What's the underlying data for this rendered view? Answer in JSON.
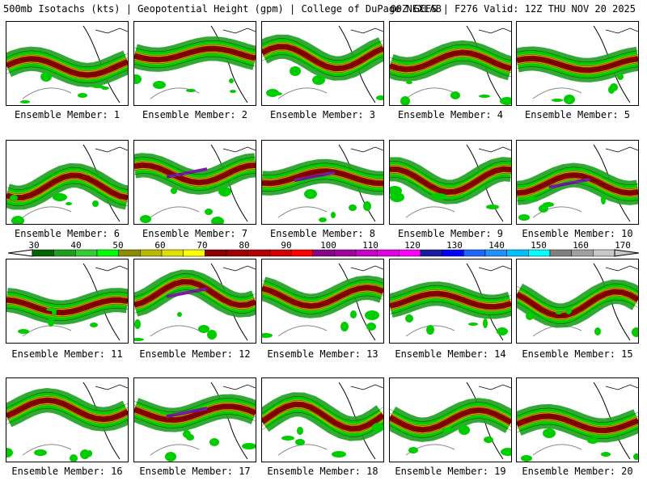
{
  "header": {
    "title": "500mb Isotachs (kts) | Geopotential Height (gpm) | College of DuPage NEXLAB",
    "run_info": "00Z GEFS | F276 Valid: 12Z THU NOV 20 2025"
  },
  "member_label_prefix": "Ensemble Member:",
  "members": [
    {
      "label": "Ensemble Member: 1"
    },
    {
      "label": "Ensemble Member: 2"
    },
    {
      "label": "Ensemble Member: 3"
    },
    {
      "label": "Ensemble Member: 4"
    },
    {
      "label": "Ensemble Member: 5"
    },
    {
      "label": "Ensemble Member: 6"
    },
    {
      "label": "Ensemble Member: 7"
    },
    {
      "label": "Ensemble Member: 8"
    },
    {
      "label": "Ensemble Member: 9"
    },
    {
      "label": "Ensemble Member: 10"
    },
    {
      "label": "Ensemble Member: 11"
    },
    {
      "label": "Ensemble Member: 12"
    },
    {
      "label": "Ensemble Member: 13"
    },
    {
      "label": "Ensemble Member: 14"
    },
    {
      "label": "Ensemble Member: 15"
    },
    {
      "label": "Ensemble Member: 16"
    },
    {
      "label": "Ensemble Member: 17"
    },
    {
      "label": "Ensemble Member: 18"
    },
    {
      "label": "Ensemble Member: 19"
    },
    {
      "label": "Ensemble Member: 20"
    }
  ],
  "colorbar": {
    "labels": [
      "30",
      "40",
      "50",
      "60",
      "70",
      "80",
      "90",
      "100",
      "110",
      "120",
      "130",
      "140",
      "150",
      "160",
      "170"
    ],
    "colors": [
      "#006400",
      "#1e9e1e",
      "#32cd32",
      "#00ff00",
      "#8b8b00",
      "#b8b800",
      "#e0e000",
      "#ffff00",
      "#8b0000",
      "#a00000",
      "#b40000",
      "#d20000",
      "#ff0000",
      "#8b008b",
      "#a000a0",
      "#c800c8",
      "#e000e0",
      "#ff00ff",
      "#1a1aa0",
      "#0000ff",
      "#1e64ff",
      "#1e90ff",
      "#00bfff",
      "#00ffff",
      "#808080",
      "#a0a0a0",
      "#c8c8c8"
    ]
  },
  "jet_colors": {
    "weak": "#1e9e1e",
    "moderate": "#00cc00",
    "strong": "#b8b800",
    "core": "#8b0000",
    "extreme": "#7a1fa0"
  }
}
